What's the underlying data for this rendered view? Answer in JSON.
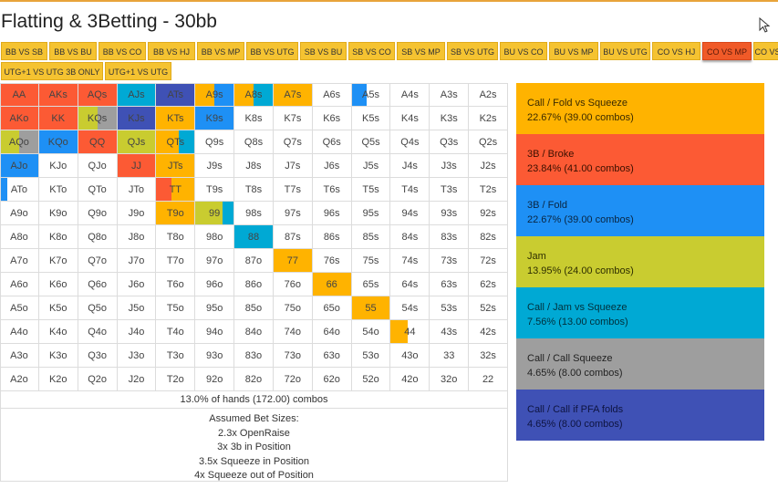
{
  "title": "Flatting & 3Betting - 30bb",
  "tabs_row1": [
    "BB VS SB",
    "BB VS BU",
    "BB VS CO",
    "BB VS HJ",
    "BB VS MP",
    "BB VS UTG",
    "SB VS BU",
    "SB VS CO",
    "SB VS MP",
    "SB VS UTG",
    "BU VS CO",
    "BU VS MP",
    "BU VS UTG",
    "CO VS HJ",
    "CO VS MP",
    "CO VS U"
  ],
  "tabs_row2": [
    "UTG+1 VS UTG 3B ONLY",
    "UTG+1 VS UTG"
  ],
  "active_tab": "CO VS MP",
  "colors": {
    "call_fold": "#ffb300",
    "threebet_broke": "#fc5a34",
    "threebet_fold": "#1e90f5",
    "jam": "#c9cc30",
    "call_jam": "#00a9d4",
    "call_call": "#9e9e9e",
    "call_pfa": "#3f51b5"
  },
  "grid": [
    [
      "AA",
      "AKs",
      "AQs",
      "AJs",
      "ATs",
      "A9s",
      "A8s",
      "A7s",
      "A6s",
      "A5s",
      "A4s",
      "A3s",
      "A2s"
    ],
    [
      "AKo",
      "KK",
      "KQs",
      "KJs",
      "KTs",
      "K9s",
      "K8s",
      "K7s",
      "K6s",
      "K5s",
      "K4s",
      "K3s",
      "K2s"
    ],
    [
      "AQo",
      "KQo",
      "QQ",
      "QJs",
      "QTs",
      "Q9s",
      "Q8s",
      "Q7s",
      "Q6s",
      "Q5s",
      "Q4s",
      "Q3s",
      "Q2s"
    ],
    [
      "AJo",
      "KJo",
      "QJo",
      "JJ",
      "JTs",
      "J9s",
      "J8s",
      "J7s",
      "J6s",
      "J5s",
      "J4s",
      "J3s",
      "J2s"
    ],
    [
      "ATo",
      "KTo",
      "QTo",
      "JTo",
      "TT",
      "T9s",
      "T8s",
      "T7s",
      "T6s",
      "T5s",
      "T4s",
      "T3s",
      "T2s"
    ],
    [
      "A9o",
      "K9o",
      "Q9o",
      "J9o",
      "T9o",
      "99",
      "98s",
      "97s",
      "96s",
      "95s",
      "94s",
      "93s",
      "92s"
    ],
    [
      "A8o",
      "K8o",
      "Q8o",
      "J8o",
      "T8o",
      "98o",
      "88",
      "87s",
      "86s",
      "85s",
      "84s",
      "83s",
      "82s"
    ],
    [
      "A7o",
      "K7o",
      "Q7o",
      "J7o",
      "T7o",
      "97o",
      "87o",
      "77",
      "76s",
      "75s",
      "74s",
      "73s",
      "72s"
    ],
    [
      "A6o",
      "K6o",
      "Q6o",
      "J6o",
      "T6o",
      "96o",
      "86o",
      "76o",
      "66",
      "65s",
      "64s",
      "63s",
      "62s"
    ],
    [
      "A5o",
      "K5o",
      "Q5o",
      "J5o",
      "T5o",
      "95o",
      "85o",
      "75o",
      "65o",
      "55",
      "54s",
      "53s",
      "52s"
    ],
    [
      "A4o",
      "K4o",
      "Q4o",
      "J4o",
      "T4o",
      "94o",
      "84o",
      "74o",
      "64o",
      "54o",
      "44",
      "43s",
      "42s"
    ],
    [
      "A3o",
      "K3o",
      "Q3o",
      "J3o",
      "T3o",
      "93o",
      "83o",
      "73o",
      "63o",
      "53o",
      "43o",
      "33",
      "32s"
    ],
    [
      "A2o",
      "K2o",
      "Q2o",
      "J2o",
      "T2o",
      "92o",
      "82o",
      "72o",
      "62o",
      "52o",
      "42o",
      "32o",
      "22"
    ]
  ],
  "hand_fills": {
    "AA": [
      [
        "threebet_broke",
        1
      ]
    ],
    "AKs": [
      [
        "threebet_broke",
        1
      ]
    ],
    "AQs": [
      [
        "threebet_broke",
        1
      ]
    ],
    "AJs": [
      [
        "call_jam",
        1
      ]
    ],
    "ATs": [
      [
        "call_pfa",
        1
      ]
    ],
    "A9s": [
      [
        "call_fold",
        0.5
      ],
      [
        "threebet_fold",
        0.5
      ]
    ],
    "A8s": [
      [
        "call_fold",
        0.5
      ],
      [
        "call_jam",
        0.5
      ]
    ],
    "A7s": [
      [
        "call_fold",
        1
      ]
    ],
    "A5s": [
      [
        "threebet_fold",
        0.4
      ]
    ],
    "AKo": [
      [
        "threebet_broke",
        1
      ]
    ],
    "KK": [
      [
        "threebet_broke",
        1
      ]
    ],
    "KQs": [
      [
        "jam",
        0.5
      ],
      [
        "call_call",
        0.5
      ]
    ],
    "KJs": [
      [
        "call_pfa",
        1
      ]
    ],
    "KTs": [
      [
        "call_fold",
        1
      ]
    ],
    "K9s": [
      [
        "threebet_fold",
        1
      ]
    ],
    "AQo": [
      [
        "jam",
        0.5
      ],
      [
        "call_call",
        0.5
      ]
    ],
    "KQo": [
      [
        "threebet_fold",
        1
      ]
    ],
    "QQ": [
      [
        "threebet_broke",
        1
      ]
    ],
    "QJs": [
      [
        "jam",
        1
      ]
    ],
    "QTs": [
      [
        "call_fold",
        0.6
      ],
      [
        "call_jam",
        0.4
      ]
    ],
    "AJo": [
      [
        "threebet_fold",
        1
      ]
    ],
    "JJ": [
      [
        "threebet_broke",
        1
      ]
    ],
    "JTs": [
      [
        "call_fold",
        1
      ]
    ],
    "ATo": [
      [
        "threebet_fold",
        0.2
      ]
    ],
    "TT": [
      [
        "threebet_broke",
        0.4
      ],
      [
        "call_fold",
        0.6
      ]
    ],
    "T9o": [
      [
        "call_fold",
        1
      ]
    ],
    "99": [
      [
        "jam",
        0.7
      ],
      [
        "call_jam",
        0.3
      ]
    ],
    "88": [
      [
        "call_jam",
        1
      ]
    ],
    "77": [
      [
        "call_fold",
        1
      ]
    ],
    "66": [
      [
        "call_fold",
        1
      ]
    ],
    "55": [
      [
        "call_fold",
        1
      ]
    ],
    "44": [
      [
        "call_fold",
        0.45
      ]
    ]
  },
  "summary": "13.0% of hands (172.00) combos",
  "bet_sizes": [
    "Assumed Bet Sizes:",
    "2.3x OpenRaise",
    "3x 3b in Position",
    "3.5x Squeeze in Position",
    "4x Squeeze out of Position"
  ],
  "legend": [
    {
      "label": "Call / Fold vs Squeeze",
      "stat": "22.67% (39.00 combos)",
      "color_key": "call_fold",
      "text_color": "#3a2a00"
    },
    {
      "label": "3B / Broke",
      "stat": "23.84% (41.00 combos)",
      "color_key": "threebet_broke",
      "text_color": "#3a1000"
    },
    {
      "label": "3B / Fold",
      "stat": "22.67% (39.00 combos)",
      "color_key": "threebet_fold",
      "text_color": "#0a2540"
    },
    {
      "label": "Jam",
      "stat": "13.95% (24.00 combos)",
      "color_key": "jam",
      "text_color": "#2e2e00"
    },
    {
      "label": "Call / Jam vs Squeeze",
      "stat": "7.56% (13.00 combos)",
      "color_key": "call_jam",
      "text_color": "#00303c"
    },
    {
      "label": "Call / Call Squeeze",
      "stat": "4.65% (8.00 combos)",
      "color_key": "call_call",
      "text_color": "#222222"
    },
    {
      "label": "Call / Call if PFA folds",
      "stat": "4.65% (8.00 combos)",
      "color_key": "call_pfa",
      "text_color": "#0e1440"
    }
  ]
}
